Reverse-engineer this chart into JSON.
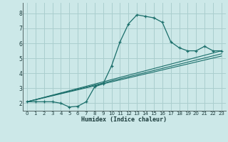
{
  "xlabel": "Humidex (Indice chaleur)",
  "bg_color": "#cce8e8",
  "grid_color": "#aacece",
  "line_color": "#1a6e6a",
  "xlim": [
    -0.5,
    23.5
  ],
  "ylim": [
    1.5,
    8.7
  ],
  "xticks": [
    0,
    1,
    2,
    3,
    4,
    5,
    6,
    7,
    8,
    9,
    10,
    11,
    12,
    13,
    14,
    15,
    16,
    17,
    18,
    19,
    20,
    21,
    22,
    23
  ],
  "yticks": [
    2,
    3,
    4,
    5,
    6,
    7,
    8
  ],
  "line1_x": [
    0,
    1,
    2,
    3,
    4,
    5,
    6,
    7,
    8,
    9,
    10,
    11,
    12,
    13,
    14,
    15,
    16,
    17,
    18,
    19,
    20,
    21,
    22,
    23
  ],
  "line1_y": [
    2.1,
    2.1,
    2.1,
    2.1,
    2.0,
    1.75,
    1.8,
    2.1,
    3.1,
    3.3,
    4.5,
    6.1,
    7.3,
    7.9,
    7.8,
    7.7,
    7.4,
    6.1,
    5.7,
    5.5,
    5.5,
    5.8,
    5.5,
    5.5
  ],
  "line2_x": [
    0,
    23
  ],
  "line2_y": [
    2.1,
    5.5
  ],
  "line3_x": [
    0,
    23
  ],
  "line3_y": [
    2.1,
    5.3
  ],
  "line4_x": [
    0,
    23
  ],
  "line4_y": [
    2.1,
    5.15
  ]
}
